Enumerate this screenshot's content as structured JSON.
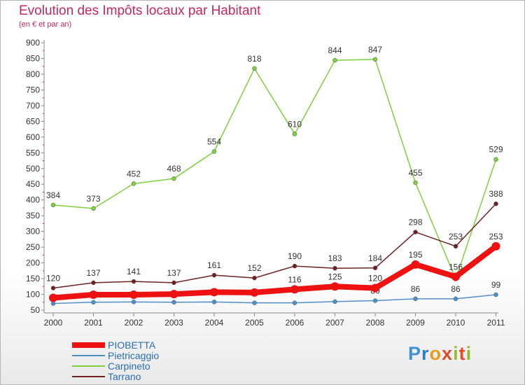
{
  "title": "Evolution des Impôts locaux par Habitant",
  "subtitle": "(en € et par an)",
  "logo": {
    "letters": [
      "P",
      "r",
      "o",
      "x",
      "i",
      "t",
      "i"
    ],
    "colors": [
      "#3f8fd2",
      "#2f7fc5",
      "#e89a1e",
      "#e04b2c",
      "#8fbf2f",
      "#e04b2c",
      "#8fbf2f"
    ]
  },
  "chart_data": {
    "type": "line",
    "x": [
      "2000",
      "2001",
      "2002",
      "2003",
      "2004",
      "2005",
      "2006",
      "2007",
      "2008",
      "2009",
      "2010",
      "2011"
    ],
    "ylim": [
      50,
      900
    ],
    "yticks": [
      50,
      100,
      150,
      200,
      250,
      300,
      350,
      400,
      450,
      500,
      550,
      600,
      650,
      700,
      750,
      800,
      850,
      900
    ],
    "grid": false,
    "legend_position": "bottom-left",
    "series": [
      {
        "name": "PIOBETTA",
        "color": "#ee1111",
        "values": [
          89,
          99,
          99,
          101,
          107,
          106,
          116,
          125,
          120,
          195,
          156,
          253
        ],
        "labels": [
          "",
          "",
          "",
          "",
          "",
          "",
          "116",
          "125",
          "120",
          "195",
          "156",
          "253"
        ]
      },
      {
        "name": "Pietricaggio",
        "color": "#4f8fc8",
        "values": [
          71,
          75,
          76,
          75,
          76,
          73,
          73,
          77,
          80,
          86,
          86,
          99
        ],
        "labels": [
          "",
          "",
          "",
          "",
          "",
          "",
          "",
          "",
          "80",
          "86",
          "86",
          "99"
        ]
      },
      {
        "name": "Carpineto",
        "color": "#7fcf3f",
        "values": [
          384,
          373,
          452,
          468,
          554,
          818,
          610,
          844,
          847,
          455,
          149,
          529
        ],
        "labels": [
          "384",
          "373",
          "452",
          "468",
          "554",
          "818",
          "610",
          "844",
          "847",
          "455",
          "",
          "529"
        ]
      },
      {
        "name": "Tarrano",
        "color": "#6e2222",
        "values": [
          120,
          137,
          141,
          137,
          161,
          152,
          190,
          183,
          184,
          298,
          253,
          388
        ],
        "labels": [
          "120",
          "137",
          "141",
          "137",
          "161",
          "152",
          "190",
          "183",
          "184",
          "298",
          "253",
          "388"
        ]
      }
    ]
  }
}
